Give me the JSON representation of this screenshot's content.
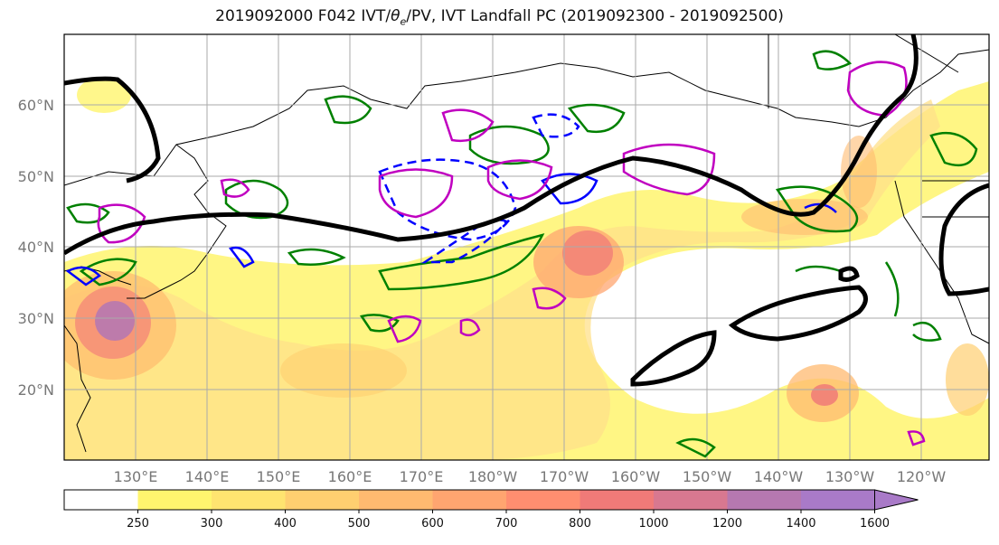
{
  "title_prefix": "2019092000 F042 IVT/",
  "title_theta": "θ",
  "title_sub": "e",
  "title_suffix": "/PV, IVT Landfall PC (2019092300 - 2019092500)",
  "lat_labels": [
    "60°N",
    "50°N",
    "40°N",
    "30°N",
    "20°N"
  ],
  "lon_labels": [
    "130°E",
    "140°E",
    "150°E",
    "160°E",
    "170°E",
    "180°W",
    "170°W",
    "160°W",
    "150°W",
    "140°W",
    "130°W",
    "120°W"
  ],
  "colorbar": {
    "ticks": [
      "250",
      "300",
      "400",
      "500",
      "600",
      "700",
      "800",
      "1000",
      "1200",
      "1400",
      "1600"
    ],
    "colors": [
      "#ffffff",
      "#fff56e",
      "#ffe470",
      "#ffcf70",
      "#ffba70",
      "#ffa570",
      "#ff8e70",
      "#f07a78",
      "#d87890",
      "#b678b0",
      "#a97ac8"
    ]
  },
  "contour_colors": {
    "ivt_high": "#ff8a70",
    "theta_e": "#000000",
    "pv_positive": "#008000",
    "pv_negative": "#0000ff",
    "landfall_pc": "#c000c0",
    "grid": "#aaaaaa"
  }
}
